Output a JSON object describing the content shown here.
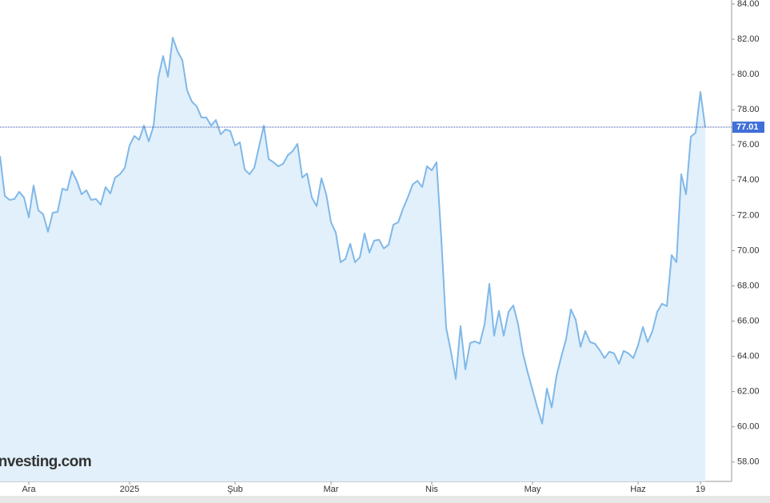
{
  "chart_data": {
    "type": "area",
    "watermark": "Investing.com",
    "color": "#80b8e8",
    "fill": "#e1f0fa",
    "categories": [
      null,
      null,
      null,
      null,
      null,
      null,
      "Ara",
      null,
      null,
      null,
      null,
      null,
      null,
      null,
      null,
      null,
      null,
      null,
      null,
      null,
      null,
      null,
      null,
      null,
      null,
      null,
      null,
      "2025",
      null,
      null,
      null,
      null,
      null,
      null,
      null,
      null,
      null,
      null,
      null,
      null,
      null,
      null,
      null,
      null,
      null,
      null,
      null,
      null,
      null,
      "Şub",
      null,
      null,
      null,
      null,
      null,
      null,
      null,
      null,
      null,
      null,
      null,
      null,
      null,
      null,
      null,
      null,
      null,
      null,
      null,
      "Mar",
      null,
      null,
      null,
      null,
      null,
      null,
      null,
      null,
      null,
      null,
      null,
      null,
      null,
      null,
      null,
      null,
      null,
      null,
      null,
      null,
      "Nis",
      null,
      null,
      null,
      null,
      null,
      null,
      null,
      null,
      null,
      null,
      null,
      null,
      null,
      null,
      null,
      null,
      null,
      null,
      null,
      null,
      "May",
      null,
      null,
      null,
      null,
      null,
      null,
      null,
      null,
      null,
      null,
      null,
      null,
      null,
      null,
      null,
      null,
      null,
      null,
      null,
      null,
      null,
      "Haz",
      null,
      null,
      null,
      null,
      null,
      null,
      null,
      null,
      null,
      null,
      null,
      null,
      "19",
      null
    ],
    "values": [
      75.38,
      73.11,
      72.88,
      72.93,
      73.34,
      73.02,
      71.89,
      73.7,
      72.29,
      72.07,
      71.07,
      72.16,
      72.2,
      73.52,
      73.43,
      74.52,
      73.97,
      73.2,
      73.43,
      72.88,
      72.93,
      72.61,
      73.61,
      73.25,
      74.15,
      74.34,
      74.7,
      75.97,
      76.51,
      76.29,
      77.1,
      76.2,
      77.06,
      79.83,
      81.05,
      79.87,
      82.09,
      81.32,
      80.82,
      79.1,
      78.46,
      78.19,
      77.56,
      77.56,
      77.1,
      77.42,
      76.6,
      76.88,
      76.79,
      75.97,
      76.15,
      74.61,
      74.34,
      74.7,
      75.92,
      77.1,
      75.2,
      75.02,
      74.79,
      74.93,
      75.42,
      75.65,
      76.06,
      74.15,
      74.38,
      73.02,
      72.52,
      74.11,
      73.2,
      71.61,
      71.02,
      69.34,
      69.53,
      70.39,
      69.34,
      69.62,
      70.98,
      69.89,
      70.57,
      70.62,
      70.12,
      70.34,
      71.48,
      71.61,
      72.38,
      73.02,
      73.75,
      73.97,
      73.61,
      74.79,
      74.56,
      75.02,
      70.62,
      65.62,
      64.26,
      62.72,
      65.72,
      63.26,
      64.76,
      64.85,
      64.72,
      65.81,
      68.12,
      65.17,
      66.58,
      65.17,
      66.53,
      66.89,
      65.81,
      64.17,
      63.08,
      62.09,
      61.09,
      60.18,
      62.18,
      61.09,
      62.9,
      63.99,
      64.99,
      66.67,
      66.08,
      64.54,
      65.44,
      64.81,
      64.72,
      64.35,
      63.9,
      64.26,
      64.17,
      63.58,
      64.31,
      64.17,
      63.9,
      64.63,
      65.67,
      64.81,
      65.44,
      66.53,
      66.99,
      66.85,
      69.75,
      69.34,
      74.34,
      73.2,
      76.47,
      76.7,
      79.01,
      77.01
    ],
    "last_price": 77.01,
    "ylim": [
      56.9,
      84.23
    ],
    "yticks": [
      {
        "value": 58,
        "label": "58.00"
      },
      {
        "value": 60,
        "label": "60.00"
      },
      {
        "value": 62,
        "label": "62.00"
      },
      {
        "value": 64,
        "label": "64.00"
      },
      {
        "value": 66,
        "label": "66.00"
      },
      {
        "value": 68,
        "label": "68.00"
      },
      {
        "value": 70,
        "label": "70.00"
      },
      {
        "value": 72,
        "label": "72.00"
      },
      {
        "value": 74,
        "label": "74.00"
      },
      {
        "value": 76,
        "label": "76.00"
      },
      {
        "value": 78,
        "label": "78.00"
      },
      {
        "value": 80,
        "label": "80.00"
      },
      {
        "value": 82,
        "label": "82.00"
      },
      {
        "value": 84,
        "label": "84.00"
      }
    ]
  }
}
